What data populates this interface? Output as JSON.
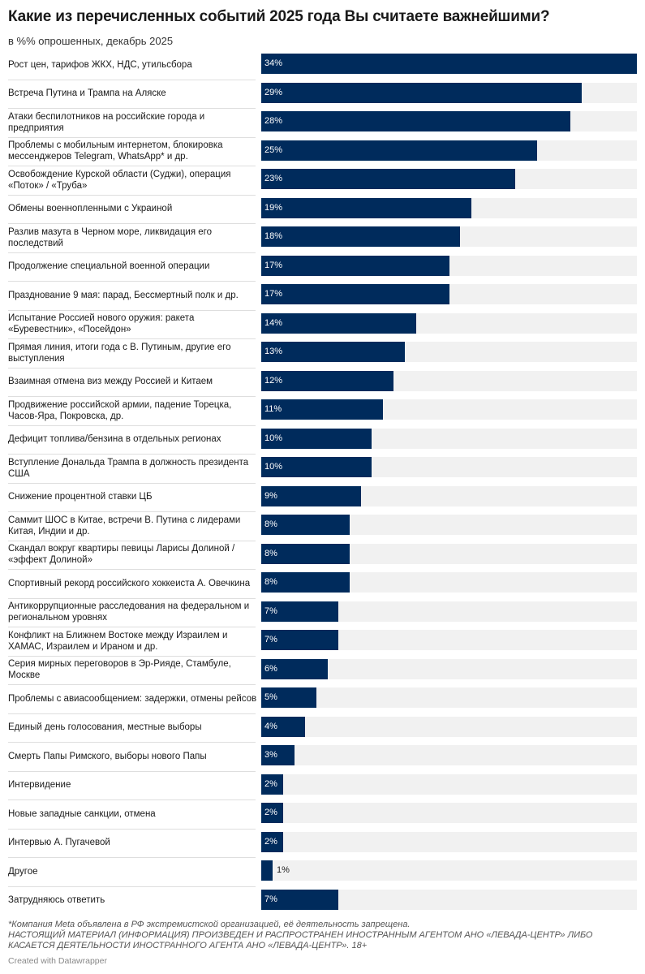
{
  "chart_data": {
    "type": "bar",
    "orientation": "horizontal",
    "title": "Какие из перечисленных событий 2025 года Вы считаете важнейшими?",
    "subtitle": "в %% опрошенных, декабрь 2025",
    "value_suffix": "%",
    "xlim": [
      0,
      34
    ],
    "categories": [
      "Рост цен, тарифов ЖКХ, НДС, утильсбора",
      "Встреча Путина и Трампа на Аляске",
      "Атаки беспилотников на российские города и предприятия",
      "Проблемы с мобильным интернетом, блокировка мессенджеров Telegram, WhatsApp* и др.",
      "Освобождение Курской области (Суджи), операция «Поток» / «Труба»",
      "Обмены военнопленными с Украиной",
      "Разлив мазута в Черном море, ликвидация его последствий",
      "Продолжение специальной военной операции",
      "Празднование 9 мая: парад, Бессмертный полк и др.",
      "Испытание Россией нового оружия: ракета «Буревестник», «Посейдон»",
      "Прямая линия, итоги года с В. Путиным, другие его выступления",
      "Взаимная отмена виз между Россией и Китаем",
      "Продвижение российской армии, падение Торецка, Часов-Яра, Покровска, др.",
      "Дефицит топлива/бензина в отдельных регионах",
      "Вступление Дональда Трампа в должность президента США",
      "Снижение процентной ставки ЦБ",
      "Саммит ШОС в Китае, встречи В. Путина с лидерами Китая, Индии и др.",
      "Скандал вокруг квартиры певицы Ларисы Долиной / «эффект Долиной»",
      "Спортивный рекорд российского хоккеиста А. Овечкина",
      "Антикоррупционные расследования на федеральном и региональном уровнях",
      "Конфликт на Ближнем Востоке между Израилем и ХАМАС, Израилем и Ираном и др.",
      "Серия мирных переговоров в Эр-Рияде, Стамбуле, Москве",
      "Проблемы с авиасообщением: задержки, отмены рейсов",
      "Единый день голосования, местные выборы",
      "Смерть Папы Римского, выборы нового Папы",
      "Интервидение",
      "Новые западные санкции, отмена",
      "Интервью А. Пугачевой",
      "Другое",
      "Затрудняюсь ответить"
    ],
    "values": [
      34,
      29,
      28,
      25,
      23,
      19,
      18,
      17,
      17,
      14,
      13,
      12,
      11,
      10,
      10,
      9,
      8,
      8,
      8,
      7,
      7,
      6,
      5,
      4,
      3,
      2,
      2,
      2,
      1,
      7
    ],
    "colors": {
      "bar": "#002b5c",
      "track": "#f1f1f1",
      "label_inside": "#ffffff",
      "label_outside": "#1a1a1a"
    }
  },
  "footnote": {
    "line1": "*Компания Meta объявлена в РФ экстремистской организацией, её деятельность запрещена.",
    "line2": "НАСТОЯЩИЙ МАТЕРИАЛ (ИНФОРМАЦИЯ) ПРОИЗВЕДЕН И РАСПРОСТРАНЕН ИНОСТРАННЫМ АГЕНТОМ АНО «ЛЕВАДА-ЦЕНТР» ЛИБО",
    "line3": "КАСАЕТСЯ ДЕЯТЕЛЬНОСТИ ИНОСТРАННОГО АГЕНТА АНО «ЛЕВАДА-ЦЕНТР». 18+"
  },
  "credit": "Created with Datawrapper"
}
